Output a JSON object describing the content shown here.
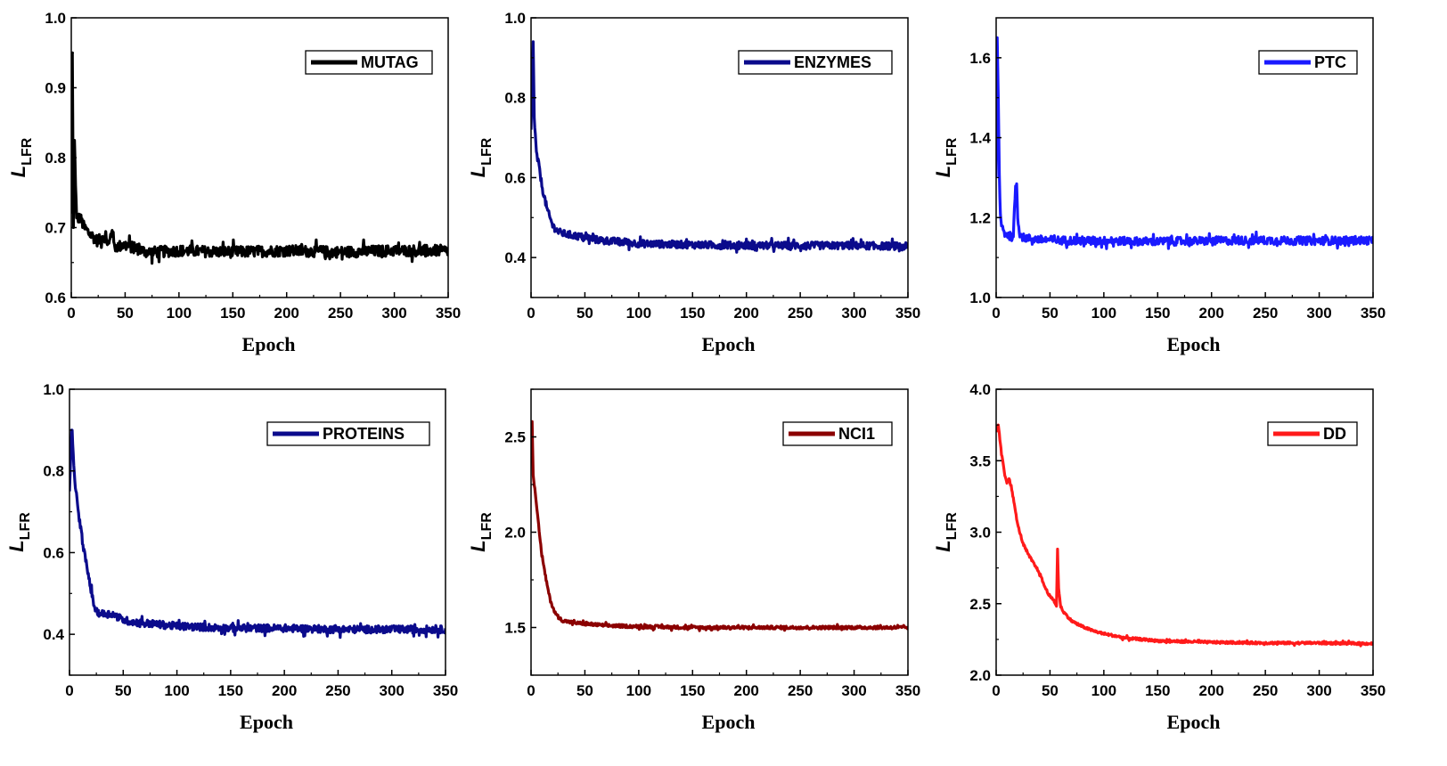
{
  "chart_data": [
    {
      "type": "line",
      "title": "",
      "legend": "MUTAG",
      "color": "#000000",
      "xlabel": "Epoch",
      "ylabel": "L",
      "ylabel_sub": "LFR",
      "xlim": [
        0,
        350
      ],
      "ylim": [
        0.6,
        1.0
      ],
      "xticks": [
        "0",
        "50",
        "100",
        "150",
        "200",
        "250",
        "300",
        "350"
      ],
      "yticks": [
        "0.6",
        "0.7",
        "0.8",
        "0.9",
        "1.0"
      ],
      "legend_position": "top-right",
      "x": [
        0,
        1,
        2,
        3,
        5,
        8,
        12,
        18,
        25,
        30,
        35,
        38,
        40,
        50,
        60,
        70,
        80,
        100,
        120,
        150,
        200,
        250,
        300,
        350
      ],
      "y": [
        0.72,
        0.95,
        0.7,
        0.82,
        0.71,
        0.715,
        0.7,
        0.69,
        0.68,
        0.69,
        0.675,
        0.7,
        0.672,
        0.675,
        0.67,
        0.665,
        0.665,
        0.667,
        0.666,
        0.665,
        0.667,
        0.665,
        0.667,
        0.667
      ],
      "noise": 0.008
    },
    {
      "type": "line",
      "title": "",
      "legend": "ENZYMES",
      "color": "#0b0b8c",
      "xlabel": "Epoch",
      "ylabel": "L",
      "ylabel_sub": "LFR",
      "xlim": [
        0,
        350
      ],
      "ylim": [
        0.3,
        1.0
      ],
      "xticks": [
        "0",
        "50",
        "100",
        "150",
        "200",
        "250",
        "300",
        "350"
      ],
      "yticks": [
        "0.4",
        "0.6",
        "0.8",
        "1.0"
      ],
      "legend_position": "top-right",
      "x": [
        0,
        2,
        3,
        5,
        8,
        10,
        15,
        20,
        25,
        30,
        40,
        50,
        60,
        80,
        100,
        150,
        200,
        250,
        300,
        350
      ],
      "y": [
        0.72,
        0.94,
        0.75,
        0.66,
        0.62,
        0.58,
        0.52,
        0.48,
        0.465,
        0.46,
        0.455,
        0.45,
        0.445,
        0.44,
        0.435,
        0.432,
        0.43,
        0.43,
        0.43,
        0.428
      ],
      "noise": 0.009
    },
    {
      "type": "line",
      "title": "",
      "legend": "PTC",
      "color": "#1a1aff",
      "xlabel": "Epoch",
      "ylabel": "L",
      "ylabel_sub": "LFR",
      "xlim": [
        0,
        350
      ],
      "ylim": [
        1.0,
        1.7
      ],
      "xticks": [
        "0",
        "50",
        "100",
        "150",
        "200",
        "250",
        "300",
        "350"
      ],
      "yticks": [
        "1.0",
        "1.2",
        "1.4",
        "1.6"
      ],
      "legend_position": "top-right",
      "x": [
        0,
        1,
        2,
        3,
        4,
        6,
        8,
        12,
        16,
        18,
        19,
        20,
        22,
        25,
        30,
        40,
        60,
        100,
        150,
        200,
        250,
        300,
        350
      ],
      "y": [
        1.3,
        1.65,
        1.5,
        1.3,
        1.2,
        1.17,
        1.16,
        1.155,
        1.15,
        1.28,
        1.28,
        1.2,
        1.16,
        1.15,
        1.148,
        1.145,
        1.143,
        1.142,
        1.14,
        1.142,
        1.143,
        1.142,
        1.143
      ],
      "noise": 0.01
    },
    {
      "type": "line",
      "title": "",
      "legend": "PROTEINS",
      "color": "#0b0b8c",
      "xlabel": "Epoch",
      "ylabel": "L",
      "ylabel_sub": "LFR",
      "xlim": [
        0,
        350
      ],
      "ylim": [
        0.3,
        1.0
      ],
      "xticks": [
        "0",
        "50",
        "100",
        "150",
        "200",
        "250",
        "300",
        "350"
      ],
      "yticks": [
        "0.4",
        "0.6",
        "0.8",
        "1.0"
      ],
      "legend_position": "top-right",
      "x": [
        0,
        2,
        5,
        8,
        12,
        15,
        18,
        22,
        25,
        30,
        40,
        50,
        60,
        80,
        100,
        150,
        200,
        250,
        300,
        350
      ],
      "y": [
        0.75,
        0.9,
        0.78,
        0.7,
        0.63,
        0.58,
        0.54,
        0.48,
        0.455,
        0.45,
        0.45,
        0.435,
        0.43,
        0.425,
        0.42,
        0.415,
        0.415,
        0.412,
        0.412,
        0.412
      ],
      "noise": 0.009
    },
    {
      "type": "line",
      "title": "",
      "legend": "NCI1",
      "color": "#8b0000",
      "xlabel": "Epoch",
      "ylabel": "L",
      "ylabel_sub": "LFR",
      "xlim": [
        0,
        350
      ],
      "ylim": [
        1.25,
        2.75
      ],
      "xticks": [
        "0",
        "50",
        "100",
        "150",
        "200",
        "250",
        "300",
        "350"
      ],
      "yticks": [
        "1.5",
        "2.0",
        "2.5"
      ],
      "legend_position": "top-right",
      "x": [
        0,
        1,
        2,
        4,
        6,
        8,
        10,
        14,
        18,
        22,
        26,
        30,
        40,
        50,
        70,
        100,
        150,
        200,
        250,
        300,
        350
      ],
      "y": [
        2.4,
        2.58,
        2.3,
        2.2,
        2.1,
        1.98,
        1.88,
        1.75,
        1.64,
        1.58,
        1.55,
        1.535,
        1.525,
        1.52,
        1.51,
        1.505,
        1.5,
        1.5,
        1.5,
        1.5,
        1.5
      ],
      "noise": 0.008
    },
    {
      "type": "line",
      "title": "",
      "legend": "DD",
      "color": "#ff1a1a",
      "xlabel": "Epoch",
      "ylabel": "L",
      "ylabel_sub": "LFR",
      "xlim": [
        0,
        350
      ],
      "ylim": [
        2.0,
        4.0
      ],
      "xticks": [
        "0",
        "50",
        "100",
        "150",
        "200",
        "250",
        "300",
        "350"
      ],
      "yticks": [
        "2.0",
        "2.5",
        "3.0",
        "3.5",
        "4.0"
      ],
      "legend_position": "top-right",
      "x": [
        0,
        2,
        5,
        8,
        10,
        12,
        15,
        20,
        25,
        30,
        35,
        40,
        45,
        50,
        54,
        56,
        57,
        58,
        60,
        62,
        65,
        70,
        80,
        90,
        100,
        120,
        150,
        200,
        250,
        300,
        350
      ],
      "y": [
        3.7,
        3.75,
        3.55,
        3.4,
        3.35,
        3.38,
        3.28,
        3.05,
        2.92,
        2.84,
        2.78,
        2.72,
        2.62,
        2.55,
        2.52,
        2.48,
        2.88,
        2.6,
        2.48,
        2.45,
        2.42,
        2.38,
        2.34,
        2.31,
        2.29,
        2.26,
        2.24,
        2.23,
        2.225,
        2.225,
        2.22
      ],
      "noise": 0.008
    }
  ]
}
